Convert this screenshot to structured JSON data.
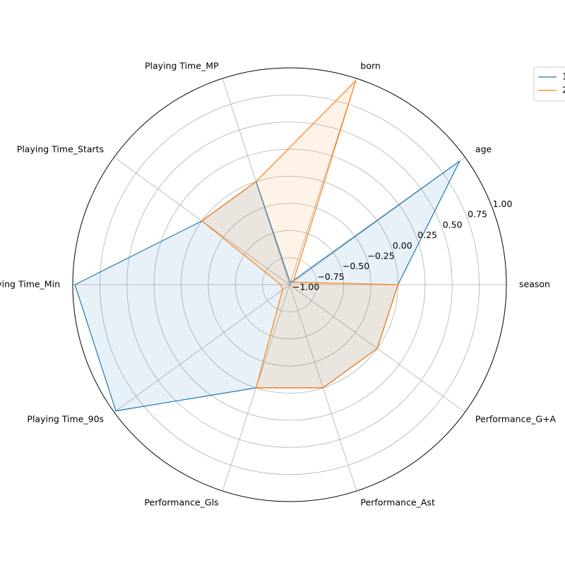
{
  "chart_data": {
    "type": "radar",
    "title": "",
    "categories": [
      "season",
      "age",
      "born",
      "Playing Time_MP",
      "Playing Time_Starts",
      "Playing Time_Min",
      "Playing Time_90s",
      "Performance_Gls",
      "Performance_Ast",
      "Performance_G+A"
    ],
    "rlim": [
      -1.0,
      1.0
    ],
    "r_ticks": [
      -1.0,
      -0.75,
      -0.5,
      -0.25,
      0.0,
      0.25,
      0.5,
      0.75,
      1.0
    ],
    "r_tick_labels": [
      "−1.00",
      "−0.75",
      "−0.50",
      "−0.25",
      "0.00",
      "0.25",
      "0.50",
      "0.75",
      "1.00"
    ],
    "grid": true,
    "legend_position": "top-right, partially cut off",
    "series": [
      {
        "name": "1",
        "color": "#1f77b4",
        "values": [
          0.0,
          0.94,
          -0.98,
          0.0,
          0.0,
          0.98,
          0.98,
          0.0,
          0.0,
          0.0
        ]
      },
      {
        "name": "2",
        "color": "#ff7f0e",
        "values": [
          0.0,
          -0.96,
          0.98,
          0.0,
          0.0,
          -0.92,
          -0.92,
          0.0,
          0.0,
          0.0
        ]
      }
    ]
  }
}
